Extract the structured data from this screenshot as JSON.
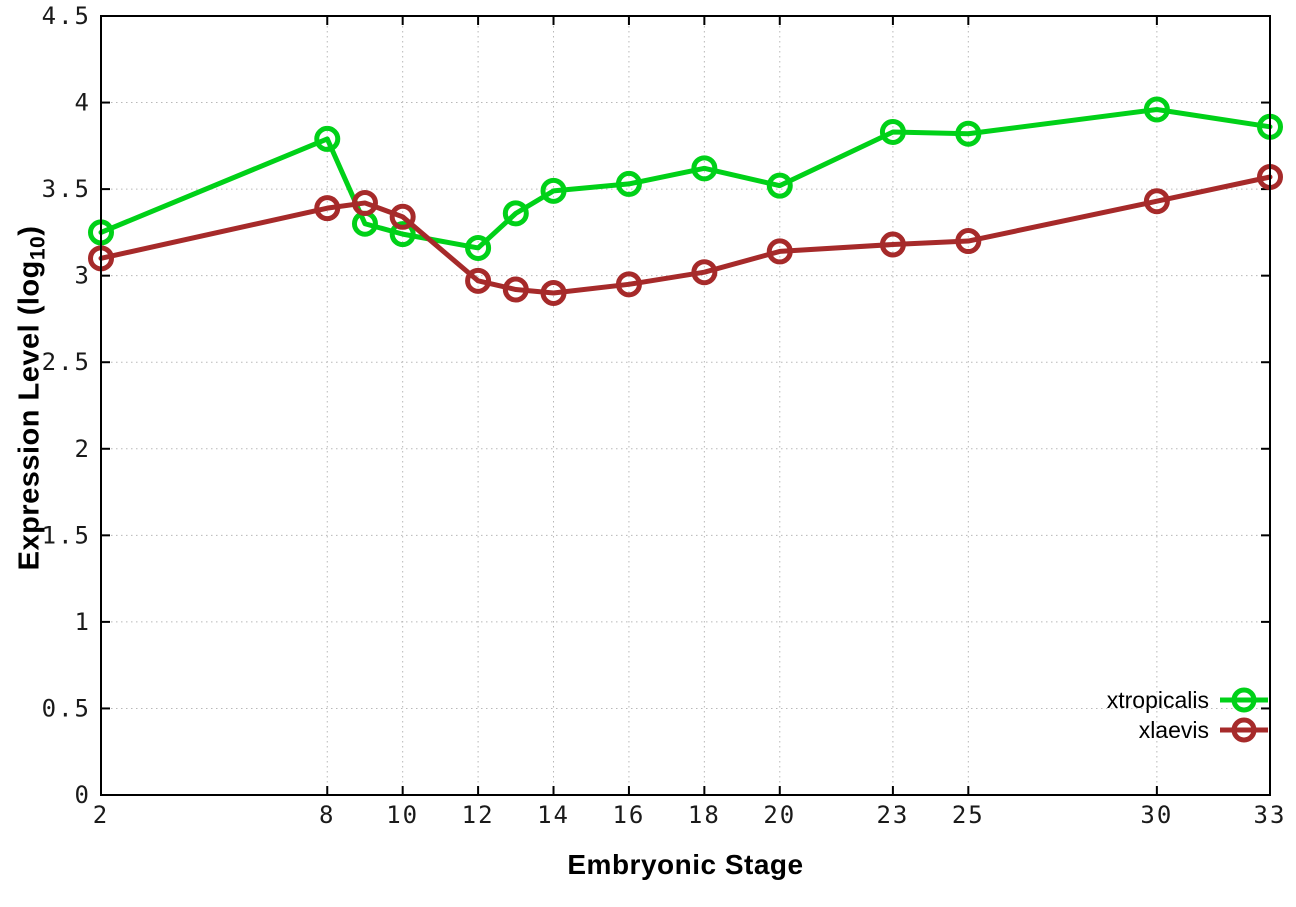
{
  "chart_data": {
    "type": "line",
    "title": "",
    "xlabel": "Embryonic Stage",
    "ylabel": "Expression Level (log10)",
    "ylabel_parts": {
      "prefix": "Expression Level (log",
      "sub": "10",
      "suffix": ")"
    },
    "x": [
      2,
      8,
      9,
      10,
      12,
      13,
      14,
      16,
      18,
      20,
      23,
      25,
      30,
      33
    ],
    "series": [
      {
        "name": "xtropicalis",
        "color": "#00d118",
        "values": [
          3.25,
          3.79,
          3.3,
          3.24,
          3.16,
          3.36,
          3.49,
          3.53,
          3.62,
          3.52,
          3.83,
          3.82,
          3.96,
          3.86
        ]
      },
      {
        "name": "xlaevis",
        "color": "#a62a2a",
        "values": [
          3.1,
          3.39,
          3.42,
          3.34,
          2.97,
          2.92,
          2.9,
          2.95,
          3.02,
          3.14,
          3.18,
          3.2,
          3.43,
          3.57
        ]
      }
    ],
    "xlim": [
      2,
      33
    ],
    "ylim": [
      0,
      4.5
    ],
    "xticks": {
      "values": [
        2,
        8,
        10,
        12,
        14,
        16,
        18,
        20,
        23,
        25,
        30,
        33
      ],
      "labels": [
        "2",
        "8",
        "10",
        "12",
        "14",
        "16",
        "18",
        "20",
        "23",
        "25",
        "30",
        "33"
      ]
    },
    "yticks": {
      "values": [
        0,
        0.5,
        1,
        1.5,
        2,
        2.5,
        3,
        3.5,
        4,
        4.5
      ],
      "labels": [
        "0",
        "0.5",
        "1",
        "1.5",
        "2",
        "2.5",
        "3",
        "3.5",
        "4",
        "4.5"
      ]
    },
    "grid": true,
    "legend_position": "bottom-right",
    "marker": "open-circle"
  },
  "colors": {
    "background": "#ffffff",
    "axis": "#000000",
    "grid": "#b8b8b8",
    "tick_text": "#1a1a1a",
    "xtropicalis": "#00d118",
    "xlaevis": "#a62a2a"
  }
}
